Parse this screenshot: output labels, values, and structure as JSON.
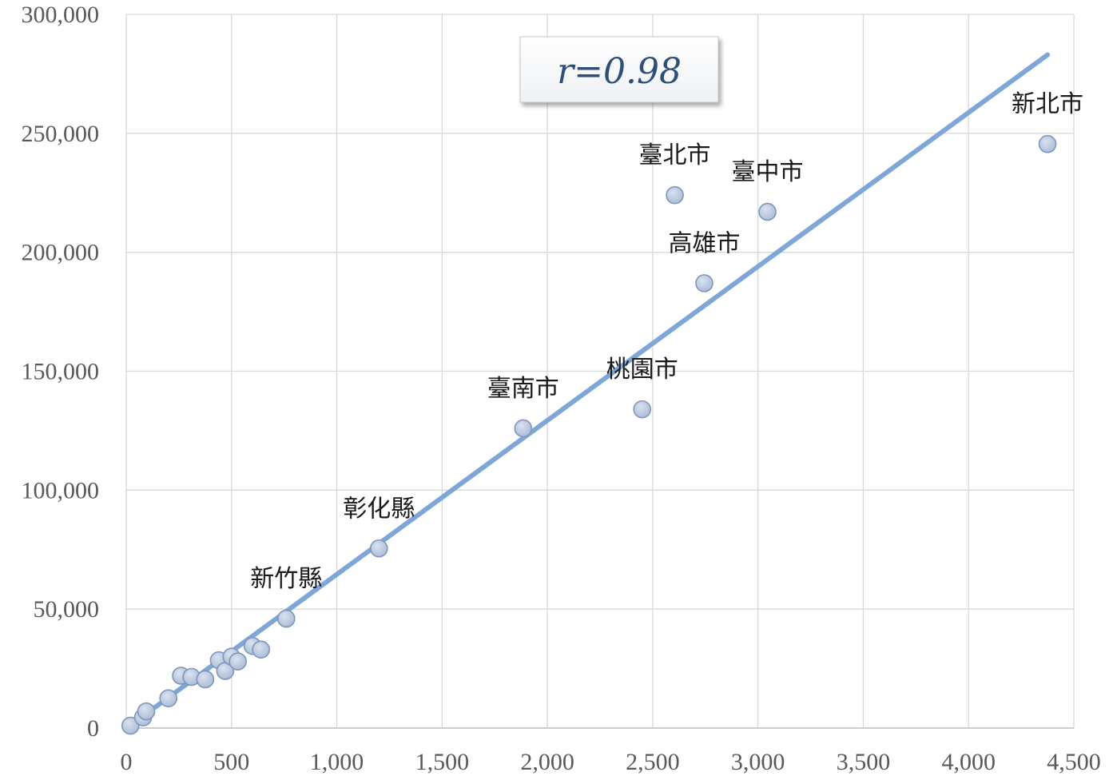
{
  "chart_data": {
    "type": "scatter",
    "xlim": [
      0,
      4500
    ],
    "ylim": [
      0,
      300000
    ],
    "x_ticks": [
      0,
      500,
      1000,
      1500,
      2000,
      2500,
      3000,
      3500,
      4000,
      4500
    ],
    "x_tick_labels": [
      "0",
      "500",
      "1,000",
      "1,500",
      "2,000",
      "2,500",
      "3,000",
      "3,500",
      "4,000",
      "4,500"
    ],
    "y_ticks": [
      0,
      50000,
      100000,
      150000,
      200000,
      250000,
      300000
    ],
    "y_tick_labels": [
      "0",
      "50,000",
      "100,000",
      "150,000",
      "200,000",
      "250,000",
      "300,000"
    ],
    "grid": true,
    "annotation": "r=0.98",
    "points": [
      {
        "x": 20,
        "y": 1000,
        "label": ""
      },
      {
        "x": 80,
        "y": 4500,
        "label": ""
      },
      {
        "x": 95,
        "y": 7000,
        "label": ""
      },
      {
        "x": 200,
        "y": 12500,
        "label": ""
      },
      {
        "x": 260,
        "y": 22000,
        "label": ""
      },
      {
        "x": 310,
        "y": 21500,
        "label": ""
      },
      {
        "x": 375,
        "y": 20500,
        "label": ""
      },
      {
        "x": 440,
        "y": 28500,
        "label": ""
      },
      {
        "x": 470,
        "y": 24000,
        "label": ""
      },
      {
        "x": 500,
        "y": 30000,
        "label": ""
      },
      {
        "x": 530,
        "y": 28000,
        "label": ""
      },
      {
        "x": 600,
        "y": 34500,
        "label": ""
      },
      {
        "x": 640,
        "y": 33000,
        "label": ""
      },
      {
        "x": 760,
        "y": 46000,
        "label": "新竹縣"
      },
      {
        "x": 1200,
        "y": 75500,
        "label": "彰化縣"
      },
      {
        "x": 1885,
        "y": 126000,
        "label": "臺南市"
      },
      {
        "x": 2450,
        "y": 134000,
        "label": "桃園市"
      },
      {
        "x": 2605,
        "y": 224000,
        "label": "臺北市"
      },
      {
        "x": 2745,
        "y": 187000,
        "label": "高雄市"
      },
      {
        "x": 3045,
        "y": 217000,
        "label": "臺中市"
      },
      {
        "x": 4375,
        "y": 245500,
        "label": "新北市"
      }
    ],
    "trendline": {
      "x": [
        25,
        4375
      ],
      "y": [
        1500,
        283000
      ]
    }
  }
}
